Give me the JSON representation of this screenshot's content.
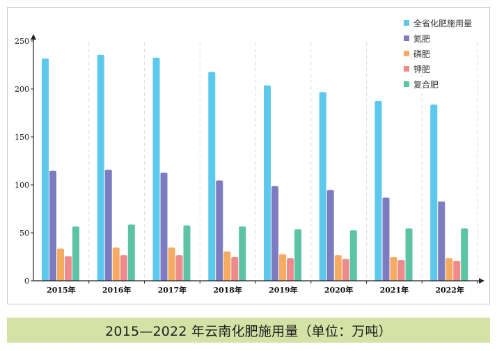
{
  "chart_data": {
    "type": "bar",
    "categories": [
      "2015年",
      "2016年",
      "2017年",
      "2018年",
      "2019年",
      "2020年",
      "2021年",
      "2022年"
    ],
    "series": [
      {
        "name": "全省化肥施用量",
        "color": "#5bc8ec",
        "values": [
          231,
          235,
          232,
          217,
          203,
          196,
          187,
          183
        ]
      },
      {
        "name": "氮肥",
        "color": "#7e7cc0",
        "values": [
          114,
          115,
          112,
          104,
          98,
          94,
          86,
          82
        ]
      },
      {
        "name": "磷肥",
        "color": "#f5ac62",
        "values": [
          33,
          34,
          34,
          30,
          27,
          26,
          24,
          23
        ]
      },
      {
        "name": "钾肥",
        "color": "#ef8a8a",
        "values": [
          25,
          26,
          26,
          24,
          23,
          22,
          21,
          20
        ]
      },
      {
        "name": "复合肥",
        "color": "#5cc3a4",
        "values": [
          56,
          58,
          57,
          56,
          53,
          52,
          54,
          54
        ]
      }
    ],
    "ylim": [
      0,
      250
    ],
    "yticks": [
      0,
      50,
      100,
      150,
      200,
      250
    ],
    "grid": "vertical dashed",
    "legend": "top-right"
  },
  "caption": "2015—2022 年云南化肥施用量（单位：万吨）"
}
